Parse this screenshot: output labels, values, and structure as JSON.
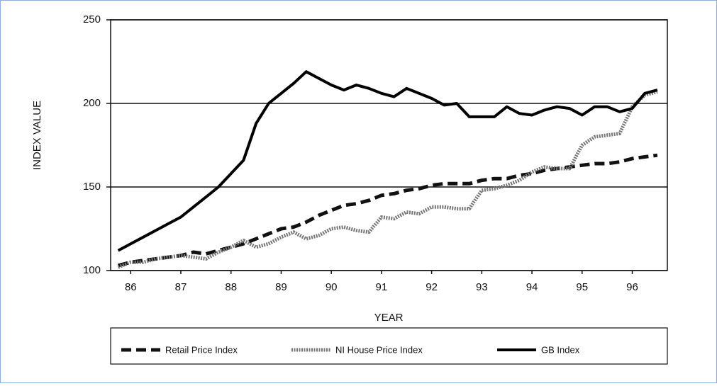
{
  "chart_data": {
    "type": "line",
    "xlabel": "YEAR",
    "ylabel": "INDEX VALUE",
    "x": [
      85.75,
      86,
      86.25,
      86.5,
      86.75,
      87,
      87.25,
      87.5,
      87.75,
      88,
      88.25,
      88.5,
      88.75,
      89,
      89.25,
      89.5,
      89.75,
      90,
      90.25,
      90.5,
      90.75,
      91,
      91.25,
      91.5,
      91.75,
      92,
      92.25,
      92.5,
      92.75,
      93,
      93.25,
      93.5,
      93.75,
      94,
      94.25,
      94.5,
      94.75,
      95,
      95.25,
      95.5,
      95.75,
      96,
      96.25,
      96.5
    ],
    "xlim": [
      85.6,
      96.7
    ],
    "xticks": [
      86,
      87,
      88,
      89,
      90,
      91,
      92,
      93,
      94,
      95,
      96
    ],
    "ylim": [
      100,
      250
    ],
    "yticks": [
      100,
      150,
      200,
      250
    ],
    "grid": true,
    "series": [
      {
        "name": "Retail Price Index",
        "color": "#111111",
        "style": "dashed",
        "values": [
          103,
          105,
          106,
          107,
          108,
          109,
          111,
          110,
          112,
          114,
          116,
          119,
          122,
          125,
          126,
          129,
          133,
          136,
          139,
          140,
          142,
          145,
          146,
          148,
          149,
          151,
          152,
          152,
          152,
          154,
          155,
          155,
          157,
          158,
          160,
          161,
          162,
          163,
          164,
          164,
          165,
          167,
          168,
          169
        ]
      },
      {
        "name": "NI House Price Index",
        "color": "#777777",
        "style": "dotted",
        "values": [
          102,
          105,
          105,
          107,
          108,
          109,
          108,
          107,
          111,
          114,
          118,
          114,
          116,
          120,
          123,
          119,
          121,
          125,
          126,
          124,
          123,
          132,
          131,
          135,
          134,
          138,
          138,
          137,
          137,
          148,
          149,
          151,
          154,
          159,
          162,
          161,
          161,
          175,
          180,
          181,
          182,
          198,
          205,
          207
        ]
      },
      {
        "name": "GB Index",
        "color": "#000000",
        "style": "solid",
        "values": [
          112,
          116,
          120,
          124,
          128,
          132,
          138,
          144,
          150,
          158,
          166,
          188,
          200,
          206,
          212,
          219,
          215,
          211,
          208,
          211,
          209,
          206,
          204,
          209,
          206,
          203,
          199,
          200,
          192,
          192,
          192,
          198,
          194,
          193,
          196,
          198,
          197,
          193,
          198,
          198,
          195,
          197,
          206,
          208
        ]
      }
    ]
  }
}
